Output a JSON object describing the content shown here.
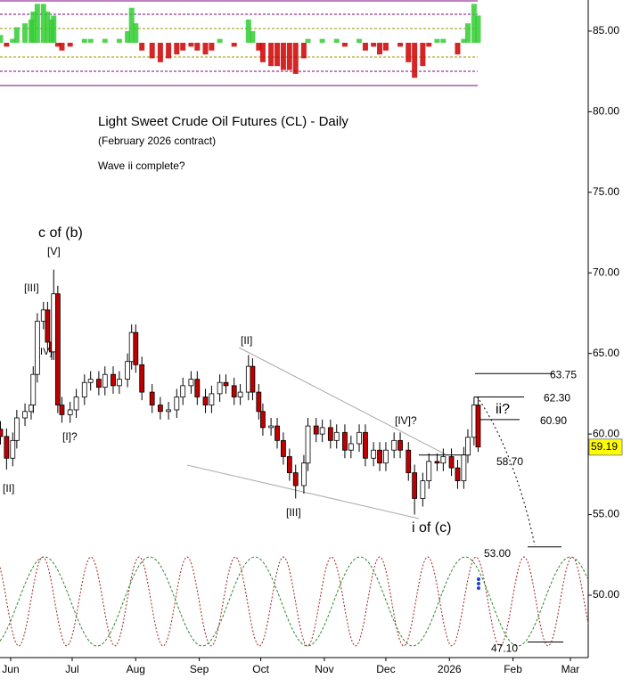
{
  "chart_data": {
    "type": "candlestick",
    "title": "Light Sweet Crude Oil Futures (CL) - Daily",
    "subtitle": "(February 2026 contract)",
    "annotation": "Wave ii complete?",
    "wave_labels": [
      "c of (b)",
      "[V]",
      "[III]",
      "[IV]",
      "[I]?",
      "[II]",
      "[II]",
      "[III]",
      "[IV]?",
      "i of (c)",
      "ii?"
    ],
    "up_color": "#ffffff",
    "down_color": "#c00000",
    "x": [
      -5,
      -2,
      1,
      3,
      7,
      10,
      11,
      13,
      16,
      18,
      20,
      21,
      23,
      25,
      29,
      32,
      36,
      39,
      43,
      46,
      50,
      53,
      57,
      59,
      61,
      64,
      69,
      73,
      77,
      81,
      84,
      88,
      91,
      95,
      98,
      102,
      105,
      109,
      112,
      116,
      118,
      121,
      123,
      127,
      130,
      133,
      136,
      139,
      143,
      145,
      149,
      152,
      156,
      159,
      163,
      166,
      170,
      173,
      177,
      180,
      183,
      187,
      190,
      194,
      197,
      201,
      204,
      208,
      211,
      215,
      218,
      221,
      223,
      226,
      228
    ],
    "open": [
      60.3,
      59.85,
      58.5,
      59.6,
      61.0,
      61.4,
      61.8,
      63.7,
      67.0,
      67.7,
      65.7,
      65.1,
      68.7,
      61.8,
      61.2,
      61.5,
      62.3,
      63.2,
      63.4,
      62.9,
      63.7,
      63.0,
      63.4,
      64.5,
      66.3,
      64.3,
      62.6,
      61.8,
      61.4,
      61.5,
      62.3,
      63.0,
      63.4,
      62.3,
      61.8,
      62.5,
      63.2,
      63.0,
      62.3,
      62.6,
      64.2,
      62.6,
      61.4,
      60.4,
      60.5,
      59.6,
      58.6,
      57.6,
      56.8,
      58.2,
      60.5,
      60.0,
      60.4,
      59.6,
      60.1,
      59.0,
      59.4,
      60.1,
      58.5,
      59.0,
      58.2,
      59.0,
      59.6,
      59.0,
      57.6,
      56.0,
      57.1,
      58.3,
      58.2,
      58.6,
      57.9,
      57.1,
      58.7,
      59.8,
      61.8
    ],
    "high": [
      60.8,
      60.35,
      60.1,
      61.5,
      61.9,
      62.3,
      64.2,
      67.5,
      68.2,
      68.2,
      66.2,
      70.2,
      69.2,
      62.3,
      62.0,
      62.8,
      63.7,
      63.9,
      63.9,
      64.2,
      64.2,
      63.9,
      65.0,
      66.8,
      66.8,
      64.8,
      63.1,
      62.3,
      62.0,
      62.8,
      63.5,
      63.9,
      63.9,
      62.8,
      63.0,
      63.7,
      63.7,
      63.5,
      63.1,
      64.9,
      64.7,
      63.1,
      61.9,
      61.0,
      61.0,
      60.1,
      59.1,
      58.1,
      58.7,
      61.0,
      61.0,
      60.9,
      60.9,
      60.6,
      60.6,
      59.9,
      60.6,
      60.6,
      59.5,
      59.5,
      59.5,
      60.1,
      60.1,
      59.5,
      58.1,
      57.6,
      58.8,
      58.8,
      59.1,
      59.1,
      58.4,
      59.2,
      60.3,
      62.3,
      62.3
    ],
    "low": [
      59.35,
      57.8,
      58.0,
      59.1,
      60.5,
      60.9,
      61.3,
      63.2,
      66.5,
      65.2,
      64.6,
      64.6,
      61.3,
      60.7,
      60.7,
      61.0,
      61.8,
      62.7,
      62.4,
      62.4,
      62.5,
      62.5,
      62.9,
      64.0,
      63.8,
      62.1,
      61.3,
      60.9,
      60.9,
      61.0,
      61.8,
      62.5,
      61.8,
      61.3,
      61.3,
      62.0,
      62.5,
      61.8,
      61.8,
      62.1,
      62.1,
      60.9,
      59.9,
      59.9,
      59.1,
      58.1,
      57.1,
      56.0,
      56.3,
      57.7,
      59.5,
      59.5,
      59.1,
      59.1,
      58.5,
      58.5,
      58.9,
      58.0,
      58.0,
      57.7,
      57.7,
      58.5,
      58.5,
      57.1,
      55.0,
      55.5,
      56.6,
      57.7,
      57.7,
      57.4,
      56.6,
      56.6,
      58.2,
      59.3,
      58.9
    ],
    "close": [
      59.85,
      58.5,
      59.6,
      61.0,
      61.4,
      61.8,
      63.7,
      67.0,
      67.7,
      65.7,
      65.1,
      68.7,
      61.8,
      61.2,
      61.5,
      62.3,
      63.2,
      63.4,
      62.9,
      63.7,
      63.0,
      63.4,
      64.5,
      66.3,
      64.3,
      62.6,
      61.8,
      61.4,
      61.5,
      62.3,
      63.0,
      63.4,
      62.3,
      61.8,
      62.5,
      63.2,
      63.0,
      62.3,
      62.6,
      64.2,
      62.6,
      61.4,
      60.4,
      60.5,
      59.6,
      58.6,
      57.6,
      56.8,
      58.2,
      60.5,
      60.0,
      60.4,
      59.6,
      60.1,
      59.0,
      59.4,
      60.1,
      58.5,
      59.0,
      58.2,
      59.0,
      59.6,
      59.0,
      57.6,
      56.0,
      57.1,
      58.3,
      58.2,
      58.6,
      57.9,
      57.1,
      58.7,
      59.8,
      61.8,
      59.2
    ],
    "oscillator": {
      "values": [
        0.2,
        -0.1,
        0.1,
        0.4,
        0.5,
        0.6,
        0.8,
        1.0,
        1.0,
        0.8,
        0.6,
        0.7,
        -0.1,
        -0.2,
        -0.1,
        0.0,
        0.1,
        0.1,
        0.0,
        0.1,
        0.0,
        0.1,
        0.3,
        0.9,
        0.5,
        -0.2,
        -0.4,
        -0.5,
        -0.4,
        -0.3,
        -0.2,
        -0.1,
        -0.2,
        -0.3,
        -0.2,
        0.1,
        0.0,
        -0.1,
        0.0,
        0.6,
        0.3,
        -0.2,
        -0.5,
        -0.6,
        -0.6,
        -0.7,
        -0.7,
        -0.8,
        -0.4,
        0.1,
        0.0,
        0.1,
        0.0,
        0.1,
        -0.1,
        0.0,
        0.1,
        -0.2,
        -0.1,
        -0.3,
        -0.2,
        0.0,
        -0.1,
        -0.5,
        -0.9,
        -0.6,
        -0.1,
        0.1,
        0.1,
        0.0,
        -0.3,
        0.1,
        0.5,
        1.0,
        0.7
      ],
      "ylim": [
        -1.1,
        1.1
      ],
      "up_color": "#33cc33",
      "down_color": "#cc0000"
    },
    "levels": [
      {
        "value": 63.75,
        "label": "63.75"
      },
      {
        "value": 62.3,
        "label": "62.30"
      },
      {
        "value": 60.9,
        "label": "60.90"
      },
      {
        "value": 58.7,
        "label": "58.70"
      },
      {
        "value": 53,
        "label": "53.00"
      },
      {
        "value": 47.1,
        "label": "47.10"
      }
    ],
    "last_price": 59.19,
    "last_price_color": "#ffff00",
    "xlim": [
      -5.2,
      281.7
    ],
    "xticks": [
      {
        "value": 0,
        "label": "Jun"
      },
      {
        "value": 30,
        "label": "Jul"
      },
      {
        "value": 61,
        "label": "Aug"
      },
      {
        "value": 92,
        "label": "Sep"
      },
      {
        "value": 122,
        "label": "Oct"
      },
      {
        "value": 153,
        "label": "Nov"
      },
      {
        "value": 183,
        "label": "Dec"
      },
      {
        "value": 214,
        "label": "2026"
      },
      {
        "value": 245,
        "label": "Feb"
      },
      {
        "value": 273,
        "label": "Mar"
      }
    ],
    "ylim": [
      46.13,
      86.93
    ],
    "yticks": [
      {
        "value": 85,
        "label": "85.00"
      },
      {
        "value": 80,
        "label": "80.00"
      },
      {
        "value": 75,
        "label": "75.00"
      },
      {
        "value": 70,
        "label": "70.00"
      },
      {
        "value": 65,
        "label": "65.00"
      },
      {
        "value": 60,
        "label": "60.00"
      },
      {
        "value": 55,
        "label": "55.00"
      },
      {
        "value": 50,
        "label": "50.00"
      }
    ]
  }
}
